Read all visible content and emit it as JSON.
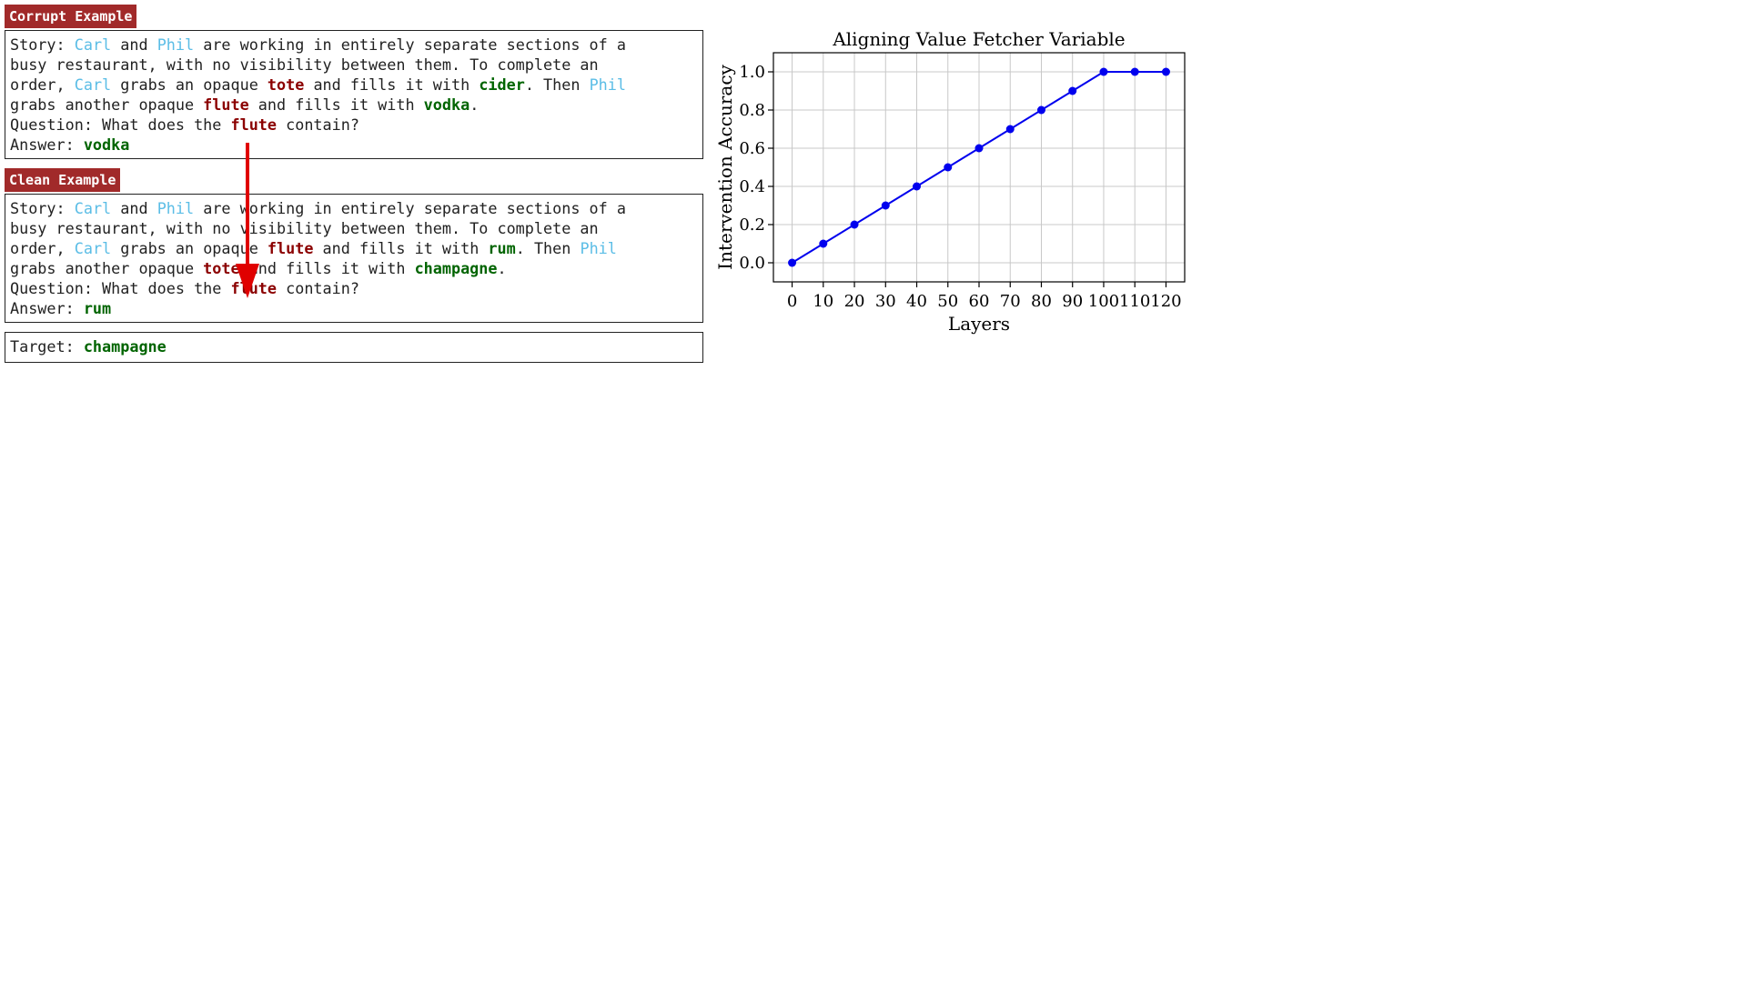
{
  "corrupt": {
    "tag": "Corrupt Example",
    "lines": [
      [
        {
          "t": "Story: "
        },
        {
          "t": "Carl",
          "c": "name"
        },
        {
          "t": " and "
        },
        {
          "t": "Phil",
          "c": "name"
        },
        {
          "t": " are working in entirely separate sections of a"
        }
      ],
      [
        {
          "t": "busy restaurant, with no visibility between them. To complete an"
        }
      ],
      [
        {
          "t": "order, "
        },
        {
          "t": "Carl",
          "c": "name"
        },
        {
          "t": " grabs an opaque "
        },
        {
          "t": "tote",
          "c": "obj"
        },
        {
          "t": " and fills it with "
        },
        {
          "t": "cider",
          "c": "drink"
        },
        {
          "t": ". Then "
        },
        {
          "t": "Phil",
          "c": "name"
        }
      ],
      [
        {
          "t": "grabs another opaque "
        },
        {
          "t": "flute",
          "c": "obj"
        },
        {
          "t": " and fills it with "
        },
        {
          "t": "vodka",
          "c": "drink"
        },
        {
          "t": "."
        }
      ],
      [
        {
          "t": "Question: What does the "
        },
        {
          "t": "flute",
          "c": "obj"
        },
        {
          "t": " contain?"
        }
      ],
      [
        {
          "t": "Answer: "
        },
        {
          "t": "vodka",
          "c": "drink"
        }
      ]
    ]
  },
  "clean": {
    "tag": "Clean Example",
    "lines": [
      [
        {
          "t": "Story: "
        },
        {
          "t": "Carl",
          "c": "name"
        },
        {
          "t": " and "
        },
        {
          "t": "Phil",
          "c": "name"
        },
        {
          "t": " are working in entirely separate sections of a"
        }
      ],
      [
        {
          "t": "busy restaurant, with no visibility between them. To complete an"
        }
      ],
      [
        {
          "t": "order, "
        },
        {
          "t": "Carl",
          "c": "name"
        },
        {
          "t": " grabs an opaque "
        },
        {
          "t": "flute",
          "c": "obj"
        },
        {
          "t": " and fills it with "
        },
        {
          "t": "rum",
          "c": "drink"
        },
        {
          "t": ". Then "
        },
        {
          "t": "Phil",
          "c": "name"
        }
      ],
      [
        {
          "t": "grabs another opaque "
        },
        {
          "t": "tote",
          "c": "obj"
        },
        {
          "t": " and fills it with "
        },
        {
          "t": "champagne",
          "c": "drink"
        },
        {
          "t": "."
        }
      ],
      [
        {
          "t": "Question: What does the "
        },
        {
          "t": "flute",
          "c": "obj"
        },
        {
          "t": " contain?"
        }
      ],
      [
        {
          "t": "Answer: "
        },
        {
          "t": "rum",
          "c": "drink"
        }
      ]
    ]
  },
  "target": {
    "label": "Target: ",
    "value": "champagne"
  },
  "colors": {
    "tag_bg": "#a12a2a",
    "name": "#5bbde6",
    "object": "#8b0000",
    "drink": "#006400",
    "arrow": "#e00000",
    "series": "#0000ee"
  },
  "chart_data": {
    "type": "line",
    "title": "Aligning Value Fetcher Variable",
    "xlabel": "Layers",
    "ylabel": "Intervention Accuracy",
    "x": [
      0,
      10,
      20,
      30,
      40,
      50,
      60,
      70,
      80,
      90,
      100,
      110,
      120
    ],
    "series": [
      {
        "values": [
          0.0,
          0.1,
          0.2,
          0.3,
          0.4,
          0.5,
          0.6,
          0.7,
          0.8,
          0.9,
          1.0,
          1.0,
          1.0
        ]
      }
    ],
    "xticks": [
      "0",
      "10",
      "20",
      "30",
      "40",
      "50",
      "60",
      "70",
      "80",
      "90",
      "100",
      "110",
      "120"
    ],
    "yticks": [
      "0.0",
      "0.2",
      "0.4",
      "0.6",
      "0.8",
      "1.0"
    ],
    "xlim": [
      -6,
      126
    ],
    "ylim": [
      -0.1,
      1.1
    ],
    "grid": true
  }
}
